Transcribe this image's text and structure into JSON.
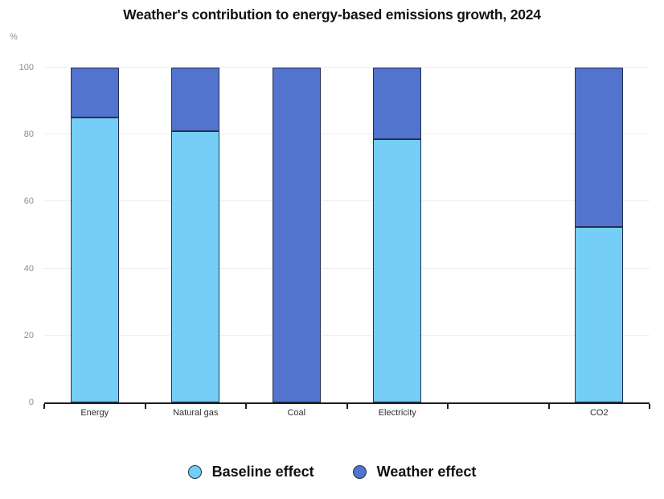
{
  "colors": {
    "baseline": "#74CEF6",
    "weather": "#5274CE",
    "outline": "#25304F",
    "grid": "#EDEDED",
    "axis": "#1F1F1F",
    "y_tick_label": "#8C8C8C",
    "x_tick_label": "#2E2E2E",
    "title": "#121212",
    "legend_text": "#111111",
    "background": "#FFFFFF"
  },
  "chart_data": {
    "type": "bar",
    "stacked": true,
    "title": "Weather's contribution to energy-based emissions growth, 2024",
    "unit_label": "%",
    "categories": [
      "Energy",
      "Natural gas",
      "Coal",
      "Electricity",
      "",
      "CO2"
    ],
    "series": [
      {
        "name": "Baseline effect",
        "color_key": "baseline",
        "values": [
          85,
          81,
          0,
          78.5,
          null,
          52.5
        ]
      },
      {
        "name": "Weather effect",
        "color_key": "weather",
        "values": [
          15,
          19,
          100,
          21.5,
          null,
          47.5
        ]
      }
    ],
    "ylim": [
      0,
      100
    ],
    "yticks": [
      0,
      20,
      40,
      60,
      80,
      100
    ],
    "grid": true,
    "legend_position": "bottom"
  }
}
